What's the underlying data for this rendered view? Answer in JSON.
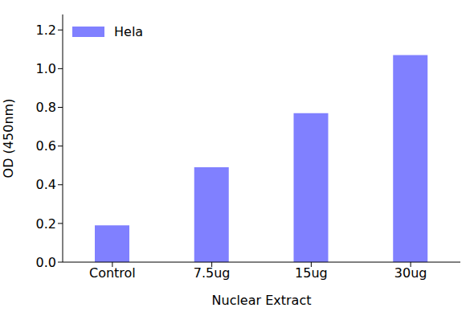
{
  "chart_data": {
    "type": "bar",
    "x_label": "Nuclear Extract",
    "y_label": "OD (450nm)",
    "categories": [
      "Control",
      "7.5ug",
      "15ug",
      "30ug"
    ],
    "series": [
      {
        "name": "Hela",
        "color": "#8080ff",
        "values": [
          0.19,
          0.49,
          0.77,
          1.07
        ]
      }
    ],
    "ylim": [
      0,
      1.28
    ],
    "yticks": [
      {
        "value": 0,
        "label": "0.0"
      },
      0.2,
      0.4,
      0.6,
      0.8,
      {
        "value": 1,
        "label": "1.0"
      },
      1.2
    ],
    "grid": false,
    "legend": "upper left"
  }
}
